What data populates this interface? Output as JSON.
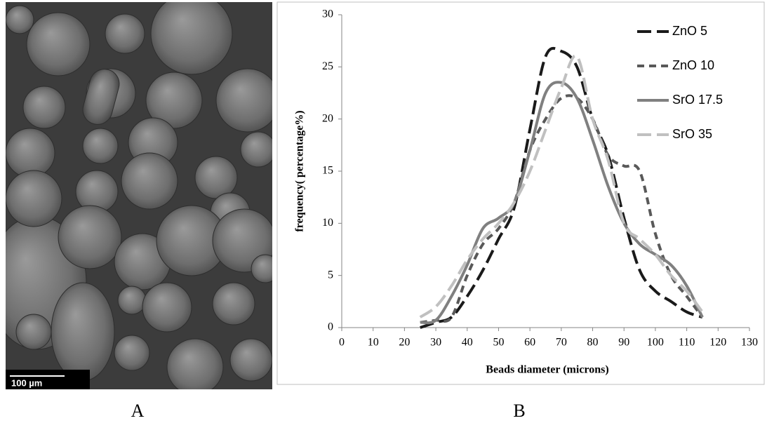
{
  "panels": {
    "a": {
      "label": "A",
      "scale_bar": "100 µm"
    },
    "b": {
      "label": "B"
    }
  },
  "chart_data": {
    "type": "line",
    "x_label": "Beads diameter (microns)",
    "y_label": "frequency( percentage%)",
    "x": [
      25,
      30,
      35,
      40,
      45,
      50,
      55,
      60,
      65,
      70,
      75,
      80,
      85,
      90,
      95,
      100,
      105,
      110,
      115
    ],
    "series": [
      {
        "name": "ZnO 5",
        "color": "#1a1a1a",
        "dash": "long-dash",
        "values": [
          0,
          0.5,
          1,
          3,
          5.5,
          8.5,
          11.5,
          19,
          26,
          26.5,
          25,
          20,
          16.5,
          10.5,
          5.5,
          3.5,
          2.5,
          1.5,
          1
        ]
      },
      {
        "name": "ZnO 10",
        "color": "#595959",
        "dash": "dash",
        "values": [
          0.5,
          0.7,
          1,
          5,
          8,
          9.5,
          12,
          17,
          20,
          22,
          22,
          20,
          16.5,
          15.5,
          15,
          9,
          5,
          3,
          1
        ]
      },
      {
        "name": "SrO 17.5",
        "color": "#808080",
        "dash": "solid",
        "values": [
          0.5,
          0.7,
          3,
          6,
          9.5,
          10.5,
          12,
          17,
          22.5,
          23.5,
          22,
          18,
          13.5,
          10,
          8,
          7,
          6,
          4,
          1
        ]
      },
      {
        "name": "SrO 35",
        "color": "#c0c0c0",
        "dash": "long-dash",
        "values": [
          1,
          2,
          4,
          6.5,
          8.5,
          10,
          12,
          15,
          19,
          23,
          26,
          20,
          16,
          10,
          8.5,
          7,
          5,
          3.5,
          1.5
        ]
      }
    ],
    "xlim": [
      0,
      130
    ],
    "xticks": [
      0,
      10,
      20,
      30,
      40,
      50,
      60,
      70,
      80,
      90,
      100,
      110,
      120,
      130
    ],
    "ylim": [
      0,
      30
    ],
    "yticks": [
      0,
      5,
      10,
      15,
      20,
      25,
      30
    ],
    "grid": false,
    "legend": "top-right"
  }
}
